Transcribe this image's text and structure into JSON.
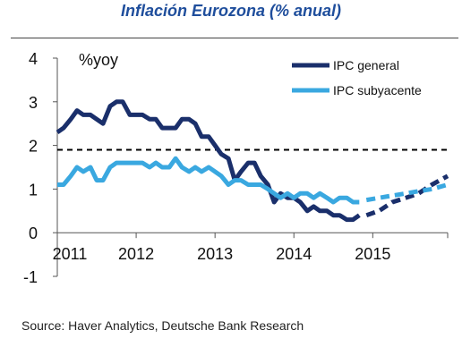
{
  "title": "Inflación Eurozona (% anual)",
  "source": "Source: Haver Analytics,  Deutsche Bank Research",
  "chart_data": {
    "type": "line",
    "title": "Inflación Eurozona (% anual)",
    "ylabel": "%yoy",
    "xlabel": "",
    "ylim": [
      -1,
      4
    ],
    "xlim": [
      2011.0,
      2015.95
    ],
    "y_ticks": [
      4,
      3,
      2,
      1,
      0,
      -1
    ],
    "x_ticks": [
      2011,
      2012,
      2013,
      2014,
      2015
    ],
    "y_tick_labels": [
      "4",
      "3",
      "2",
      "1",
      "0",
      "-1"
    ],
    "x_tick_labels": [
      "2011",
      "2012",
      "2013",
      "2014",
      "2015"
    ],
    "legend_position": "top-right",
    "reference_line": {
      "y": 1.9,
      "style": "dashed",
      "color": "#000000"
    },
    "series": [
      {
        "name": "IPC general",
        "color": "#1a2f6b",
        "style": "solid",
        "x": [
          2011.0,
          2011.08,
          2011.17,
          2011.25,
          2011.33,
          2011.42,
          2011.5,
          2011.58,
          2011.67,
          2011.75,
          2011.83,
          2011.92,
          2012.0,
          2012.08,
          2012.17,
          2012.25,
          2012.33,
          2012.42,
          2012.5,
          2012.58,
          2012.67,
          2012.75,
          2012.83,
          2012.92,
          2013.0,
          2013.08,
          2013.17,
          2013.25,
          2013.33,
          2013.42,
          2013.5,
          2013.58,
          2013.67,
          2013.75,
          2013.83,
          2013.92,
          2014.0,
          2014.08,
          2014.17,
          2014.25,
          2014.33,
          2014.42,
          2014.5,
          2014.58,
          2014.67,
          2014.75,
          2014.83
        ],
        "y": [
          2.3,
          2.4,
          2.6,
          2.8,
          2.7,
          2.7,
          2.6,
          2.5,
          2.9,
          3.0,
          3.0,
          2.7,
          2.7,
          2.7,
          2.6,
          2.6,
          2.4,
          2.4,
          2.4,
          2.6,
          2.6,
          2.5,
          2.2,
          2.2,
          2.0,
          1.8,
          1.7,
          1.2,
          1.4,
          1.6,
          1.6,
          1.3,
          1.1,
          0.7,
          0.9,
          0.8,
          0.8,
          0.7,
          0.5,
          0.6,
          0.5,
          0.5,
          0.4,
          0.4,
          0.3,
          0.3,
          0.4
        ]
      },
      {
        "name": "IPC subyacente",
        "color": "#3aa8e0",
        "style": "solid",
        "x": [
          2011.0,
          2011.08,
          2011.17,
          2011.25,
          2011.33,
          2011.42,
          2011.5,
          2011.58,
          2011.67,
          2011.75,
          2011.83,
          2011.92,
          2012.0,
          2012.08,
          2012.17,
          2012.25,
          2012.33,
          2012.42,
          2012.5,
          2012.58,
          2012.67,
          2012.75,
          2012.83,
          2012.92,
          2013.0,
          2013.08,
          2013.17,
          2013.25,
          2013.33,
          2013.42,
          2013.5,
          2013.58,
          2013.67,
          2013.75,
          2013.83,
          2013.92,
          2014.0,
          2014.08,
          2014.17,
          2014.25,
          2014.33,
          2014.42,
          2014.5,
          2014.58,
          2014.67,
          2014.75,
          2014.83
        ],
        "y": [
          1.1,
          1.1,
          1.3,
          1.5,
          1.4,
          1.5,
          1.2,
          1.2,
          1.5,
          1.6,
          1.6,
          1.6,
          1.6,
          1.6,
          1.5,
          1.6,
          1.5,
          1.5,
          1.7,
          1.5,
          1.4,
          1.5,
          1.4,
          1.5,
          1.4,
          1.3,
          1.1,
          1.2,
          1.2,
          1.1,
          1.1,
          1.1,
          1.0,
          0.9,
          0.8,
          0.9,
          0.8,
          0.9,
          0.9,
          0.8,
          0.9,
          0.8,
          0.7,
          0.8,
          0.8,
          0.7,
          0.7
        ]
      },
      {
        "name": "IPC general",
        "color": "#1a2f6b",
        "style": "dashed",
        "x": [
          2014.92,
          2015.08,
          2015.25,
          2015.42,
          2015.58,
          2015.75,
          2015.95
        ],
        "y": [
          0.4,
          0.5,
          0.7,
          0.8,
          0.9,
          1.1,
          1.3
        ]
      },
      {
        "name": "IPC subyacente",
        "color": "#3aa8e0",
        "style": "dashed",
        "x": [
          2014.92,
          2015.08,
          2015.25,
          2015.42,
          2015.58,
          2015.75,
          2015.95
        ],
        "y": [
          0.75,
          0.8,
          0.85,
          0.9,
          0.95,
          1.0,
          1.1
        ]
      }
    ]
  }
}
